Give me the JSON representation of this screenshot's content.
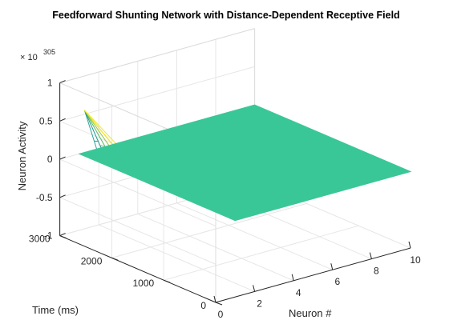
{
  "chart_data": {
    "type": "surface",
    "title": "Feedforward Shunting Network with Distance-Dependent Receptive Field",
    "xlabel": "Neuron #",
    "ylabel": "Time (ms)",
    "zlabel": "Neuron Activity",
    "xlim": [
      0,
      10
    ],
    "ylim": [
      0,
      3000
    ],
    "zlim": [
      -1,
      1
    ],
    "z_exponent_label": "× 10",
    "z_exponent_value": "305",
    "x_ticks": [
      "0",
      "2",
      "4",
      "6",
      "8",
      "10"
    ],
    "y_ticks": [
      "0",
      "1000",
      "2000",
      "3000"
    ],
    "z_ticks": [
      "1",
      "0.5",
      "0",
      "-0.5",
      "-1"
    ],
    "grid": true,
    "surface": {
      "x_range": [
        1,
        10
      ],
      "y_range": [
        0,
        3000
      ],
      "z_value": 0,
      "color": "#3ac797"
    },
    "spike": {
      "x_range": [
        1,
        2
      ],
      "y_range": [
        2300,
        3000
      ],
      "peak": {
        "x": 1,
        "y": 2900,
        "z": 0.6
      },
      "colors": [
        "#2ca1a0",
        "#1f9a8a",
        "#55b95f",
        "#8dc63f",
        "#c5d12f",
        "#f3e52b"
      ]
    }
  }
}
